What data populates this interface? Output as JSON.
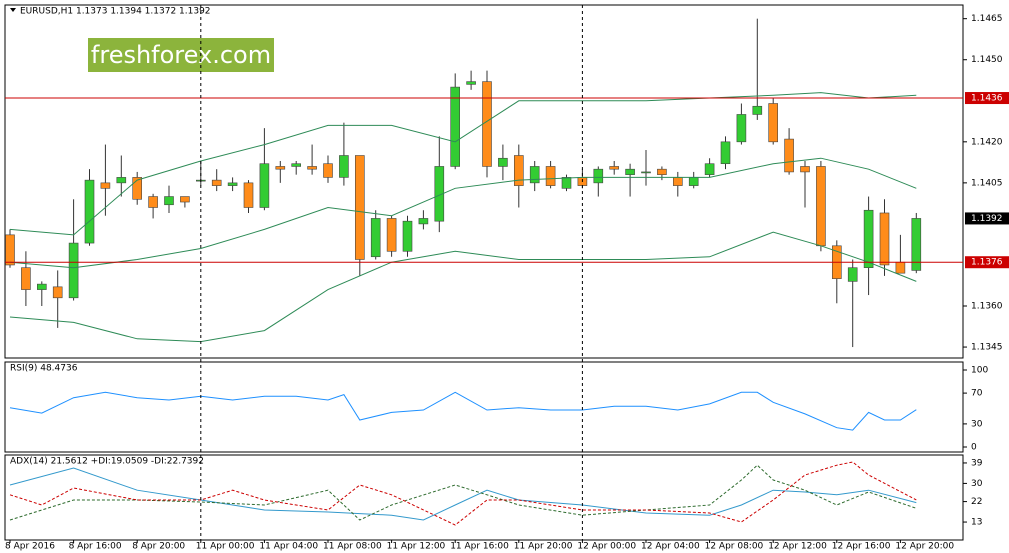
{
  "watermark": "freshforex.com",
  "chart_data": [
    {
      "type": "candlestick",
      "title": "EURUSD,H1  1.1373 1.1394 1.1372 1.1392",
      "categories": [
        "8 Apr 2016",
        null,
        null,
        null,
        "8 Apr 16:00",
        null,
        null,
        null,
        "8 Apr 20:00",
        null,
        null,
        null,
        "11 Apr 00:00",
        null,
        null,
        null,
        "11 Apr 04:00",
        null,
        null,
        null,
        "11 Apr 08:00",
        null,
        null,
        null,
        "11 Apr 12:00",
        null,
        null,
        null,
        "11 Apr 16:00",
        null,
        null,
        null,
        "11 Apr 20:00",
        null,
        null,
        null,
        "12 Apr 00:00",
        null,
        null,
        null,
        "12 Apr 04:00",
        null,
        null,
        null,
        "12 Apr 08:00",
        null,
        null,
        null,
        "12 Apr 12:00",
        null,
        null,
        null,
        "12 Apr 16:00",
        null,
        null,
        null,
        "12 Apr 20:00",
        null
      ],
      "open": [
        1.1386,
        1.1374,
        1.1366,
        1.1367,
        1.1363,
        1.1383,
        1.1405,
        1.1405,
        1.1407,
        1.14,
        1.1397,
        1.14,
        1.1406,
        1.1406,
        1.1404,
        1.1405,
        1.1396,
        1.1411,
        1.1411,
        1.1411,
        1.1412,
        1.1407,
        1.1415,
        1.1378,
        1.1392,
        1.138,
        1.139,
        1.1391,
        1.1411,
        1.1441,
        1.1442,
        1.1411,
        1.1415,
        1.1405,
        1.1411,
        1.1403,
        1.1407,
        1.1405,
        1.1411,
        1.1408,
        1.1409,
        1.141,
        1.1407,
        1.1404,
        1.1408,
        1.1412,
        1.142,
        1.143,
        1.1434,
        1.1421,
        1.1411,
        1.1411,
        1.1382,
        1.1369,
        1.1374,
        1.1394,
        1.1376,
        1.1373
      ],
      "high": [
        1.1388,
        1.138,
        1.1369,
        1.1373,
        1.1399,
        1.141,
        1.1419,
        1.1415,
        1.1409,
        1.1401,
        1.1404,
        1.14,
        1.1413,
        1.141,
        1.1407,
        1.1406,
        1.1425,
        1.1413,
        1.1413,
        1.1419,
        1.1415,
        1.1427,
        1.1415,
        1.1395,
        1.1393,
        1.1393,
        1.1395,
        1.1422,
        1.1445,
        1.1446,
        1.1446,
        1.1419,
        1.1419,
        1.1413,
        1.1413,
        1.1408,
        1.141,
        1.1411,
        1.1413,
        1.1412,
        1.1417,
        1.1411,
        1.1409,
        1.1409,
        1.1414,
        1.1422,
        1.1434,
        1.1465,
        1.1436,
        1.1425,
        1.1413,
        1.1413,
        1.1384,
        1.1377,
        1.14,
        1.1399,
        1.1386,
        1.1394
      ],
      "low": [
        1.1374,
        1.136,
        1.136,
        1.1352,
        1.1362,
        1.1382,
        1.1393,
        1.14,
        1.1397,
        1.1392,
        1.1394,
        1.1396,
        1.1404,
        1.1402,
        1.1402,
        1.1394,
        1.1395,
        1.1405,
        1.1408,
        1.1408,
        1.1405,
        1.1404,
        1.1371,
        1.1377,
        1.1378,
        1.1378,
        1.1388,
        1.1387,
        1.141,
        1.1439,
        1.1407,
        1.1406,
        1.1396,
        1.1402,
        1.1403,
        1.1402,
        1.1403,
        1.14,
        1.1408,
        1.14,
        1.1404,
        1.1406,
        1.14,
        1.1403,
        1.1407,
        1.141,
        1.1419,
        1.1428,
        1.1419,
        1.1408,
        1.1396,
        1.138,
        1.1361,
        1.1345,
        1.1364,
        1.1371,
        1.1372,
        1.1372
      ],
      "close": [
        1.1375,
        1.1366,
        1.1368,
        1.1363,
        1.1383,
        1.1406,
        1.1403,
        1.1407,
        1.1399,
        1.1396,
        1.14,
        1.1398,
        1.1406,
        1.1404,
        1.1405,
        1.1396,
        1.1412,
        1.141,
        1.1412,
        1.141,
        1.1407,
        1.1415,
        1.1377,
        1.1392,
        1.138,
        1.1391,
        1.1392,
        1.1411,
        1.144,
        1.1442,
        1.1411,
        1.1414,
        1.1404,
        1.1411,
        1.1404,
        1.1407,
        1.1404,
        1.141,
        1.141,
        1.141,
        1.1409,
        1.1408,
        1.1404,
        1.1407,
        1.1412,
        1.142,
        1.143,
        1.1433,
        1.142,
        1.1409,
        1.1409,
        1.1382,
        1.137,
        1.1374,
        1.1395,
        1.1375,
        1.1372,
        1.1392
      ],
      "up_color": "#33cc33",
      "down_color": "#ff8c1a",
      "series": [
        {
          "color": "#2e8b57",
          "x": [
            0,
            4,
            8,
            12,
            16,
            20,
            24,
            28,
            32,
            36,
            40,
            44,
            48,
            51,
            54,
            57
          ],
          "values": [
            1.1388,
            1.1386,
            1.1406,
            1.1413,
            1.1419,
            1.1426,
            1.1426,
            1.142,
            1.1435,
            1.1435,
            1.1435,
            1.1436,
            1.1437,
            1.1438,
            1.1436,
            1.1437
          ]
        },
        {
          "color": "#2e8b57",
          "x": [
            0,
            4,
            8,
            12,
            16,
            20,
            24,
            28,
            32,
            36,
            40,
            44,
            48,
            51,
            54,
            57
          ],
          "values": [
            1.1376,
            1.1374,
            1.1377,
            1.1381,
            1.1388,
            1.1396,
            1.1393,
            1.1403,
            1.1406,
            1.1407,
            1.1407,
            1.1407,
            1.1412,
            1.1414,
            1.141,
            1.1403
          ]
        },
        {
          "color": "#2e8b57",
          "x": [
            0,
            4,
            8,
            12,
            16,
            20,
            24,
            28,
            32,
            36,
            40,
            44,
            48,
            51,
            54,
            57
          ],
          "values": [
            1.1356,
            1.1354,
            1.1348,
            1.1347,
            1.1351,
            1.1366,
            1.1376,
            1.138,
            1.1377,
            1.1377,
            1.1377,
            1.1378,
            1.1387,
            1.1382,
            1.1376,
            1.1369
          ]
        }
      ],
      "levels": [
        {
          "value": 1.1436,
          "color": "#cc0000"
        },
        {
          "value": 1.1376,
          "color": "#cc0000"
        }
      ],
      "last_price": {
        "value": 1.1392,
        "color": "#000000"
      },
      "separators": [
        12,
        36
      ],
      "ylim": [
        1.1341,
        1.147
      ],
      "yticks": [
        1.1465,
        {
          "value": 1.145,
          "label": "1.1450"
        },
        {
          "value": 1.142,
          "label": "1.1420"
        },
        1.1405,
        {
          "value": 1.136,
          "label": "1.1360"
        },
        1.1345
      ]
    },
    {
      "type": "line",
      "title": "RSI(9) 48.4736",
      "series": [
        {
          "color": "#1e90ff",
          "x": [
            0,
            2,
            4,
            6,
            8,
            10,
            12,
            14,
            16,
            18,
            20,
            21,
            22,
            24,
            26,
            28,
            30,
            32,
            34,
            36,
            38,
            40,
            42,
            44,
            46,
            47,
            48,
            50,
            52,
            53,
            54,
            55,
            56,
            57
          ],
          "values": [
            51,
            44,
            64,
            71,
            64,
            61,
            66,
            61,
            66,
            66,
            61,
            68,
            35,
            45,
            48,
            71,
            48,
            51,
            48,
            48,
            53,
            53,
            48,
            56,
            71,
            71,
            58,
            43,
            25,
            22,
            45,
            35,
            35,
            48.4736
          ]
        }
      ],
      "ylim": [
        -6.5,
        110.4
      ],
      "yticks": [
        100,
        70,
        30,
        0
      ]
    },
    {
      "type": "line",
      "title": "ADX(14) 21.5612 +DI:19.0509 -DI:22.7392",
      "series": [
        {
          "color": "#3399cc",
          "dash": false,
          "x": [
            0,
            4,
            8,
            12,
            16,
            20,
            24,
            26,
            28,
            30,
            32,
            36,
            40,
            44,
            46,
            48,
            50,
            52,
            54,
            57
          ],
          "values": [
            29.3,
            36.8,
            27,
            22.7,
            18.3,
            17.4,
            16,
            13.9,
            20.5,
            27,
            22.7,
            20.5,
            17,
            16,
            20.5,
            27,
            26.2,
            25,
            27,
            21.5612
          ]
        },
        {
          "color": "#2e6b2e",
          "dash": true,
          "x": [
            0,
            4,
            8,
            12,
            16,
            20,
            22,
            24,
            28,
            30,
            32,
            36,
            40,
            44,
            46,
            47,
            48,
            50,
            52,
            54,
            57
          ],
          "values": [
            13.9,
            22.7,
            22.7,
            21.8,
            20.5,
            27,
            13.9,
            20.5,
            29.3,
            25,
            20.5,
            16,
            18.3,
            20.5,
            31.5,
            38,
            31.5,
            27,
            20.5,
            26.2,
            19.0509
          ]
        },
        {
          "color": "#cc0000",
          "dash": true,
          "x": [
            0,
            2,
            4,
            8,
            12,
            14,
            16,
            20,
            22,
            24,
            28,
            30,
            32,
            36,
            40,
            44,
            46,
            48,
            50,
            52,
            53,
            54,
            57
          ],
          "values": [
            25,
            20.5,
            28,
            22.7,
            22.7,
            27,
            22.7,
            18.3,
            29.3,
            25,
            11.7,
            22.7,
            22.7,
            18.3,
            18.3,
            17,
            13,
            22.7,
            33.7,
            38,
            39.4,
            33.7,
            22.7392
          ]
        }
      ],
      "ylim": [
        5.1,
        42.5
      ],
      "yticks": [
        39,
        30,
        22,
        13
      ]
    }
  ]
}
